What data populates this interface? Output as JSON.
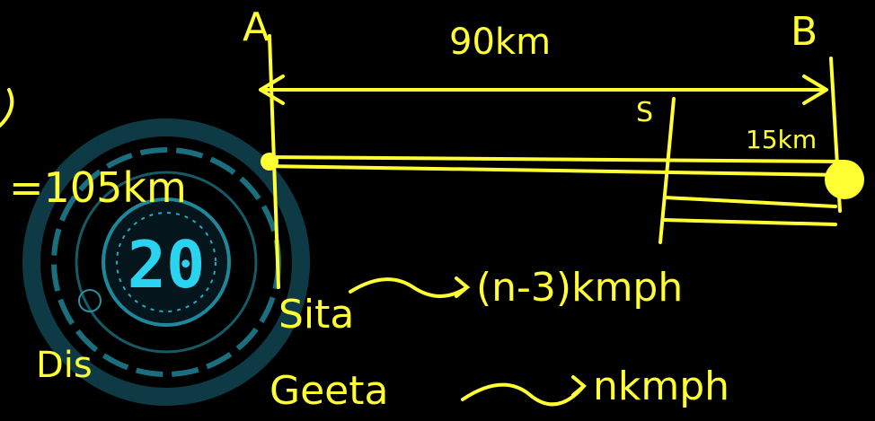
{
  "timer": {
    "value": "20"
  },
  "board": {
    "point_a": "A",
    "point_b": "B",
    "distance_ab": "90km",
    "meet_label": "S",
    "remaining": "15km",
    "total": "=105km",
    "left_note": "Dis",
    "person_1": "Sita",
    "speed_1": "(n-3)kmph",
    "person_2": "Geeta",
    "speed_2": "nkmph"
  }
}
